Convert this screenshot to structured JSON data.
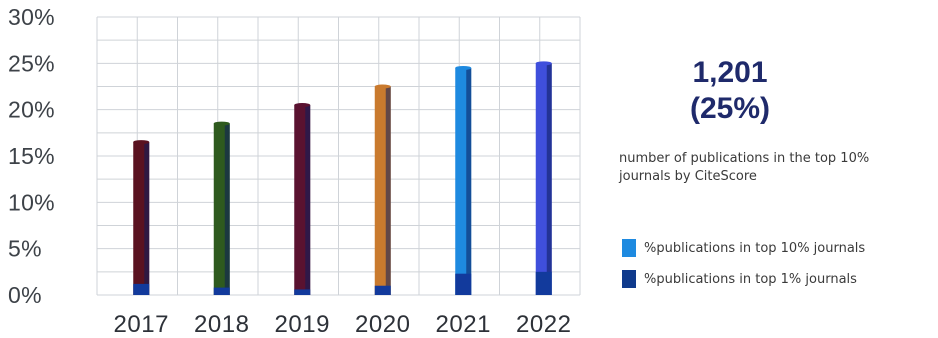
{
  "chart_data": {
    "type": "bar",
    "categories": [
      "2017",
      "2018",
      "2019",
      "2020",
      "2021",
      "2022"
    ],
    "y_ticks": [
      "0%",
      "5%",
      "10%",
      "15%",
      "20%",
      "25%",
      "30%"
    ],
    "ylim": [
      0,
      30
    ],
    "grid": true,
    "legend_position": "right",
    "series": [
      {
        "name": "%publications in top 10% journals",
        "values": [
          16.5,
          18.5,
          20.5,
          22.5,
          24.5,
          25
        ],
        "bar_colors": [
          "#5a1220",
          "#2e5a1e",
          "#5a1230",
          "#c97a2e",
          "#1e8ae0",
          "#3f4fdc"
        ],
        "legend_color": "#1e8ae0"
      },
      {
        "name": "%publications in top 1% journals",
        "values": [
          1.2,
          0.8,
          0.6,
          1.0,
          2.3,
          2.5
        ],
        "bar_color": "#123a9c",
        "legend_color": "#0f3a8c"
      }
    ]
  },
  "highlight": {
    "count": "1,201",
    "percent": "(25%)",
    "description_line1": "number of publications in the top 10%",
    "description_line2": "journals by CiteScore"
  },
  "legend": {
    "items": [
      {
        "label": "%publications in top 10% journals",
        "color": "#1e8ae0"
      },
      {
        "label": "%publications in top 1% journals",
        "color": "#0f3a8c"
      }
    ]
  }
}
